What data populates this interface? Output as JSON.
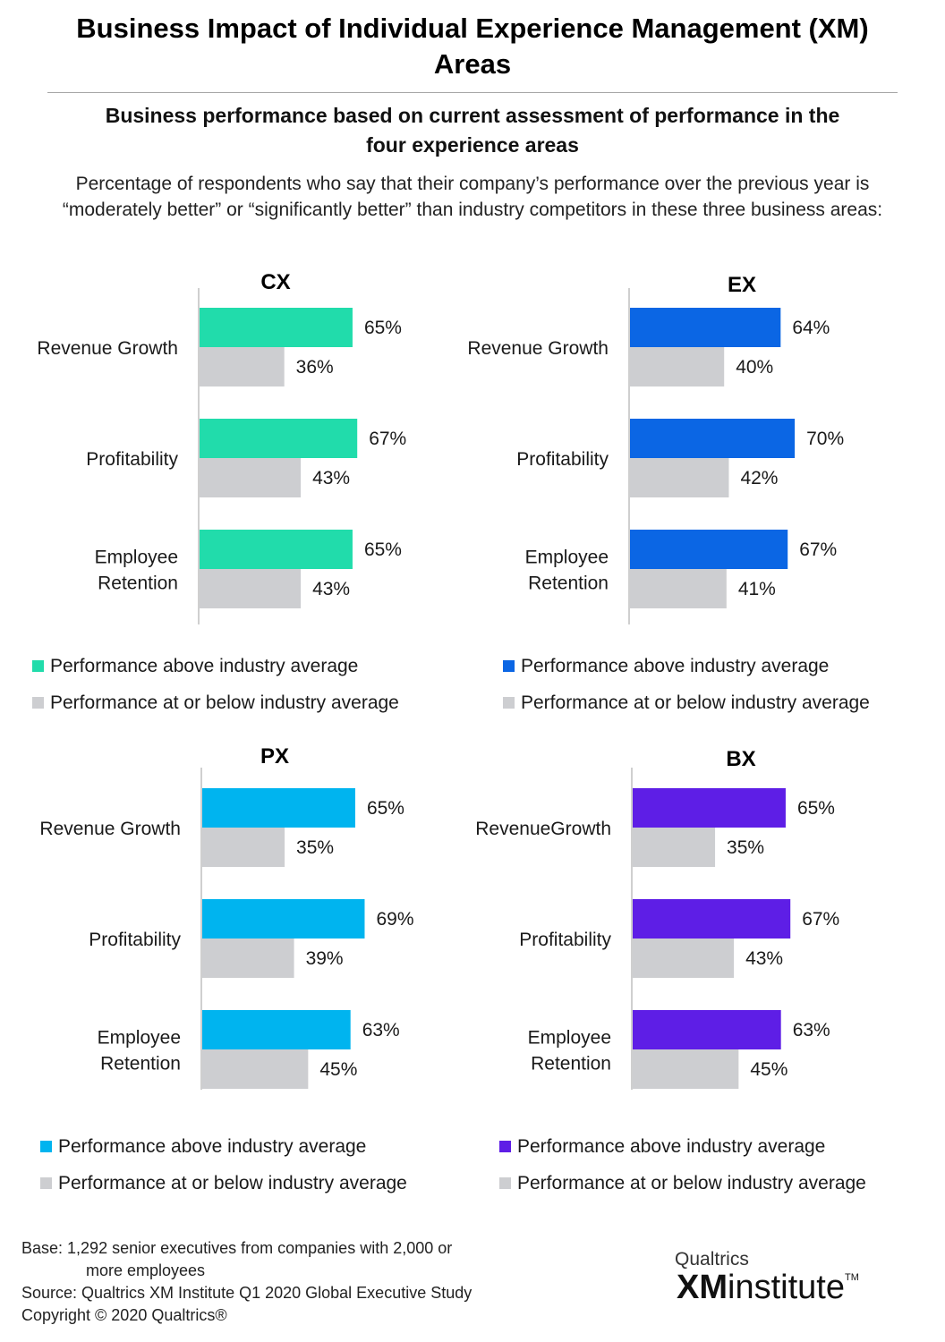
{
  "title": "Business Impact of Individual Experience Management (XM) Areas",
  "subtitle": "Business performance based on current assessment of performance in the four experience areas",
  "intro": "Percentage of respondents who say that their company’s performance over the previous year is “moderately better” or “significantly better” than industry competitors in these three business areas:",
  "chart_data": [
    {
      "type": "bar",
      "orientation": "horizontal",
      "title": "CX",
      "categories": [
        [
          "Revenue Growth"
        ],
        [
          "Profitability"
        ],
        [
          "Employee",
          "Retention"
        ]
      ],
      "series": [
        {
          "name": "Performance above industry average",
          "color": "#21dcab",
          "values": [
            65,
            67,
            65
          ]
        },
        {
          "name": "Performance at or below industry average",
          "color": "#cdced1",
          "values": [
            36,
            43,
            43
          ]
        }
      ],
      "value_suffix": "%"
    },
    {
      "type": "bar",
      "orientation": "horizontal",
      "title": "EX",
      "categories": [
        [
          "Revenue Growth"
        ],
        [
          "Profitability"
        ],
        [
          "Employee",
          "Retention"
        ]
      ],
      "series": [
        {
          "name": "Performance above industry average",
          "color": "#0b66e4",
          "values": [
            64,
            70,
            67
          ]
        },
        {
          "name": "Performance at or below industry average",
          "color": "#cdced1",
          "values": [
            40,
            42,
            41
          ]
        }
      ],
      "value_suffix": "%"
    },
    {
      "type": "bar",
      "orientation": "horizontal",
      "title": "PX",
      "categories": [
        [
          "Revenue Growth"
        ],
        [
          "Profitability"
        ],
        [
          "Employee",
          "Retention"
        ]
      ],
      "series": [
        {
          "name": "Performance above industry average",
          "color": "#00b4ef",
          "values": [
            65,
            69,
            63
          ]
        },
        {
          "name": "Performance at or below industry average",
          "color": "#cdced1",
          "values": [
            35,
            39,
            45
          ]
        }
      ],
      "value_suffix": "%"
    },
    {
      "type": "bar",
      "orientation": "horizontal",
      "title": "BX",
      "categories": [
        [
          "RevenueGrowth"
        ],
        [
          "Profitability"
        ],
        [
          "Employee",
          "Retention"
        ]
      ],
      "series": [
        {
          "name": "Performance above industry average",
          "color": "#5e1ee6",
          "values": [
            65,
            67,
            63
          ]
        },
        {
          "name": "Performance at or below industry average",
          "color": "#cdced1",
          "values": [
            35,
            43,
            45
          ]
        }
      ],
      "value_suffix": "%"
    }
  ],
  "footer": {
    "base_line1": "Base: 1,292 senior executives from companies with 2,000 or",
    "base_line2": "more employees",
    "source": "Source: Qualtrics XM Institute Q1 2020 Global Executive Study",
    "copyright": "Copyright © 2020 Qualtrics®"
  },
  "brand": {
    "top": "Qualtrics",
    "main_bold": "XM",
    "main_rest": "institute",
    "tm": "TM"
  }
}
